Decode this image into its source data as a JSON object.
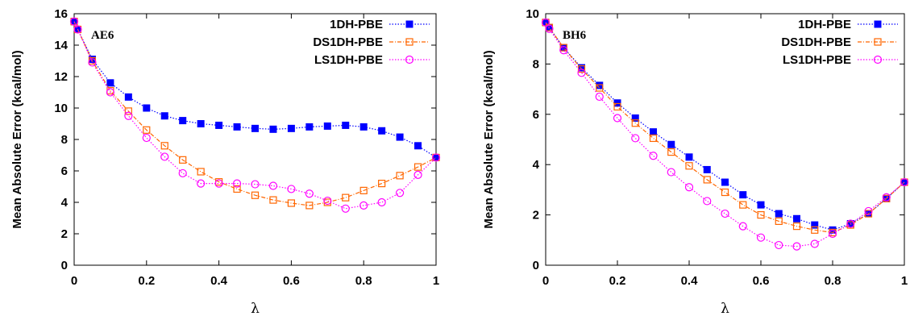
{
  "chart_data": [
    {
      "type": "line",
      "panel_label": "AE6",
      "xlabel": "λ",
      "ylabel": "Mean Absolute Error (kcal/mol)",
      "xlim": [
        0,
        1
      ],
      "ylim": [
        0,
        16
      ],
      "xticks": [
        0,
        0.2,
        0.4,
        0.6,
        0.8,
        1
      ],
      "xtick_labels": [
        "0",
        "0.2",
        "0.4",
        "0.6",
        "0.8",
        "1"
      ],
      "yticks": [
        0,
        2,
        4,
        6,
        8,
        10,
        12,
        14,
        16
      ],
      "ytick_labels": [
        "0",
        "2",
        "4",
        "6",
        "8",
        "10",
        "12",
        "14",
        "16"
      ],
      "legend_position": "top-right",
      "grid": false,
      "series": [
        {
          "name": "1DH-PBE",
          "color": "#0000ff",
          "marker": "filled-square",
          "x": [
            0,
            0.01,
            0.05,
            0.1,
            0.15,
            0.2,
            0.25,
            0.3,
            0.35,
            0.4,
            0.45,
            0.5,
            0.55,
            0.6,
            0.65,
            0.7,
            0.75,
            0.8,
            0.85,
            0.9,
            0.95,
            1.0
          ],
          "y": [
            15.5,
            15.0,
            13.1,
            11.6,
            10.7,
            10.0,
            9.5,
            9.2,
            9.0,
            8.9,
            8.8,
            8.7,
            8.65,
            8.7,
            8.8,
            8.85,
            8.9,
            8.8,
            8.55,
            8.15,
            7.6,
            6.85
          ]
        },
        {
          "name": "DS1DH-PBE",
          "color": "#ff6600",
          "marker": "open-square",
          "x": [
            0,
            0.01,
            0.05,
            0.1,
            0.15,
            0.2,
            0.25,
            0.3,
            0.35,
            0.4,
            0.45,
            0.5,
            0.55,
            0.6,
            0.65,
            0.7,
            0.75,
            0.8,
            0.85,
            0.9,
            0.95,
            1.0
          ],
          "y": [
            15.5,
            15.0,
            13.0,
            11.1,
            9.8,
            8.6,
            7.6,
            6.7,
            5.95,
            5.3,
            4.85,
            4.45,
            4.15,
            3.95,
            3.8,
            4.0,
            4.3,
            4.75,
            5.2,
            5.7,
            6.25,
            6.85
          ]
        },
        {
          "name": "LS1DH-PBE",
          "color": "#ff00ff",
          "marker": "open-circle",
          "x": [
            0,
            0.01,
            0.05,
            0.1,
            0.15,
            0.2,
            0.25,
            0.3,
            0.35,
            0.4,
            0.45,
            0.5,
            0.55,
            0.6,
            0.65,
            0.7,
            0.75,
            0.8,
            0.85,
            0.9,
            0.95,
            1.0
          ],
          "y": [
            15.5,
            15.0,
            12.9,
            11.0,
            9.5,
            8.1,
            6.9,
            5.85,
            5.2,
            5.2,
            5.2,
            5.15,
            5.05,
            4.85,
            4.55,
            4.1,
            3.6,
            3.8,
            4.0,
            4.6,
            5.75,
            6.85
          ]
        }
      ]
    },
    {
      "type": "line",
      "panel_label": "BH6",
      "xlabel": "λ",
      "ylabel": "Mean Absolute Error (kcal/mol)",
      "xlim": [
        0,
        1
      ],
      "ylim": [
        0,
        10
      ],
      "xticks": [
        0,
        0.2,
        0.4,
        0.6,
        0.8,
        1
      ],
      "xtick_labels": [
        "0",
        "0.2",
        "0.4",
        "0.6",
        "0.8",
        "1"
      ],
      "yticks": [
        0,
        2,
        4,
        6,
        8,
        10
      ],
      "ytick_labels": [
        "0",
        "2",
        "4",
        "6",
        "8",
        "10"
      ],
      "legend_position": "top-right",
      "grid": false,
      "series": [
        {
          "name": "1DH-PBE",
          "color": "#0000ff",
          "marker": "filled-square",
          "x": [
            0,
            0.01,
            0.05,
            0.1,
            0.15,
            0.2,
            0.25,
            0.3,
            0.35,
            0.4,
            0.45,
            0.5,
            0.55,
            0.6,
            0.65,
            0.7,
            0.75,
            0.8,
            0.85,
            0.9,
            0.95,
            1.0
          ],
          "y": [
            9.65,
            9.45,
            8.65,
            7.85,
            7.15,
            6.45,
            5.85,
            5.3,
            4.8,
            4.3,
            3.8,
            3.3,
            2.8,
            2.4,
            2.05,
            1.85,
            1.6,
            1.4,
            1.65,
            2.05,
            2.65,
            3.3
          ]
        },
        {
          "name": "DS1DH-PBE",
          "color": "#ff6600",
          "marker": "open-square",
          "x": [
            0,
            0.01,
            0.05,
            0.1,
            0.15,
            0.2,
            0.25,
            0.3,
            0.35,
            0.4,
            0.45,
            0.5,
            0.55,
            0.6,
            0.65,
            0.7,
            0.75,
            0.8,
            0.85,
            0.9,
            0.95,
            1.0
          ],
          "y": [
            9.65,
            9.45,
            8.65,
            7.8,
            7.05,
            6.3,
            5.65,
            5.05,
            4.5,
            3.95,
            3.4,
            2.9,
            2.4,
            2.0,
            1.75,
            1.55,
            1.4,
            1.3,
            1.6,
            2.05,
            2.65,
            3.3
          ]
        },
        {
          "name": "LS1DH-PBE",
          "color": "#ff00ff",
          "marker": "open-circle",
          "x": [
            0,
            0.01,
            0.05,
            0.1,
            0.15,
            0.2,
            0.25,
            0.3,
            0.35,
            0.4,
            0.45,
            0.5,
            0.55,
            0.6,
            0.65,
            0.7,
            0.75,
            0.8,
            0.85,
            0.9,
            0.95,
            1.0
          ],
          "y": [
            9.65,
            9.4,
            8.55,
            7.65,
            6.7,
            5.85,
            5.05,
            4.35,
            3.7,
            3.1,
            2.55,
            2.05,
            1.55,
            1.1,
            0.8,
            0.75,
            0.85,
            1.25,
            1.65,
            2.15,
            2.7,
            3.3
          ]
        }
      ]
    }
  ]
}
